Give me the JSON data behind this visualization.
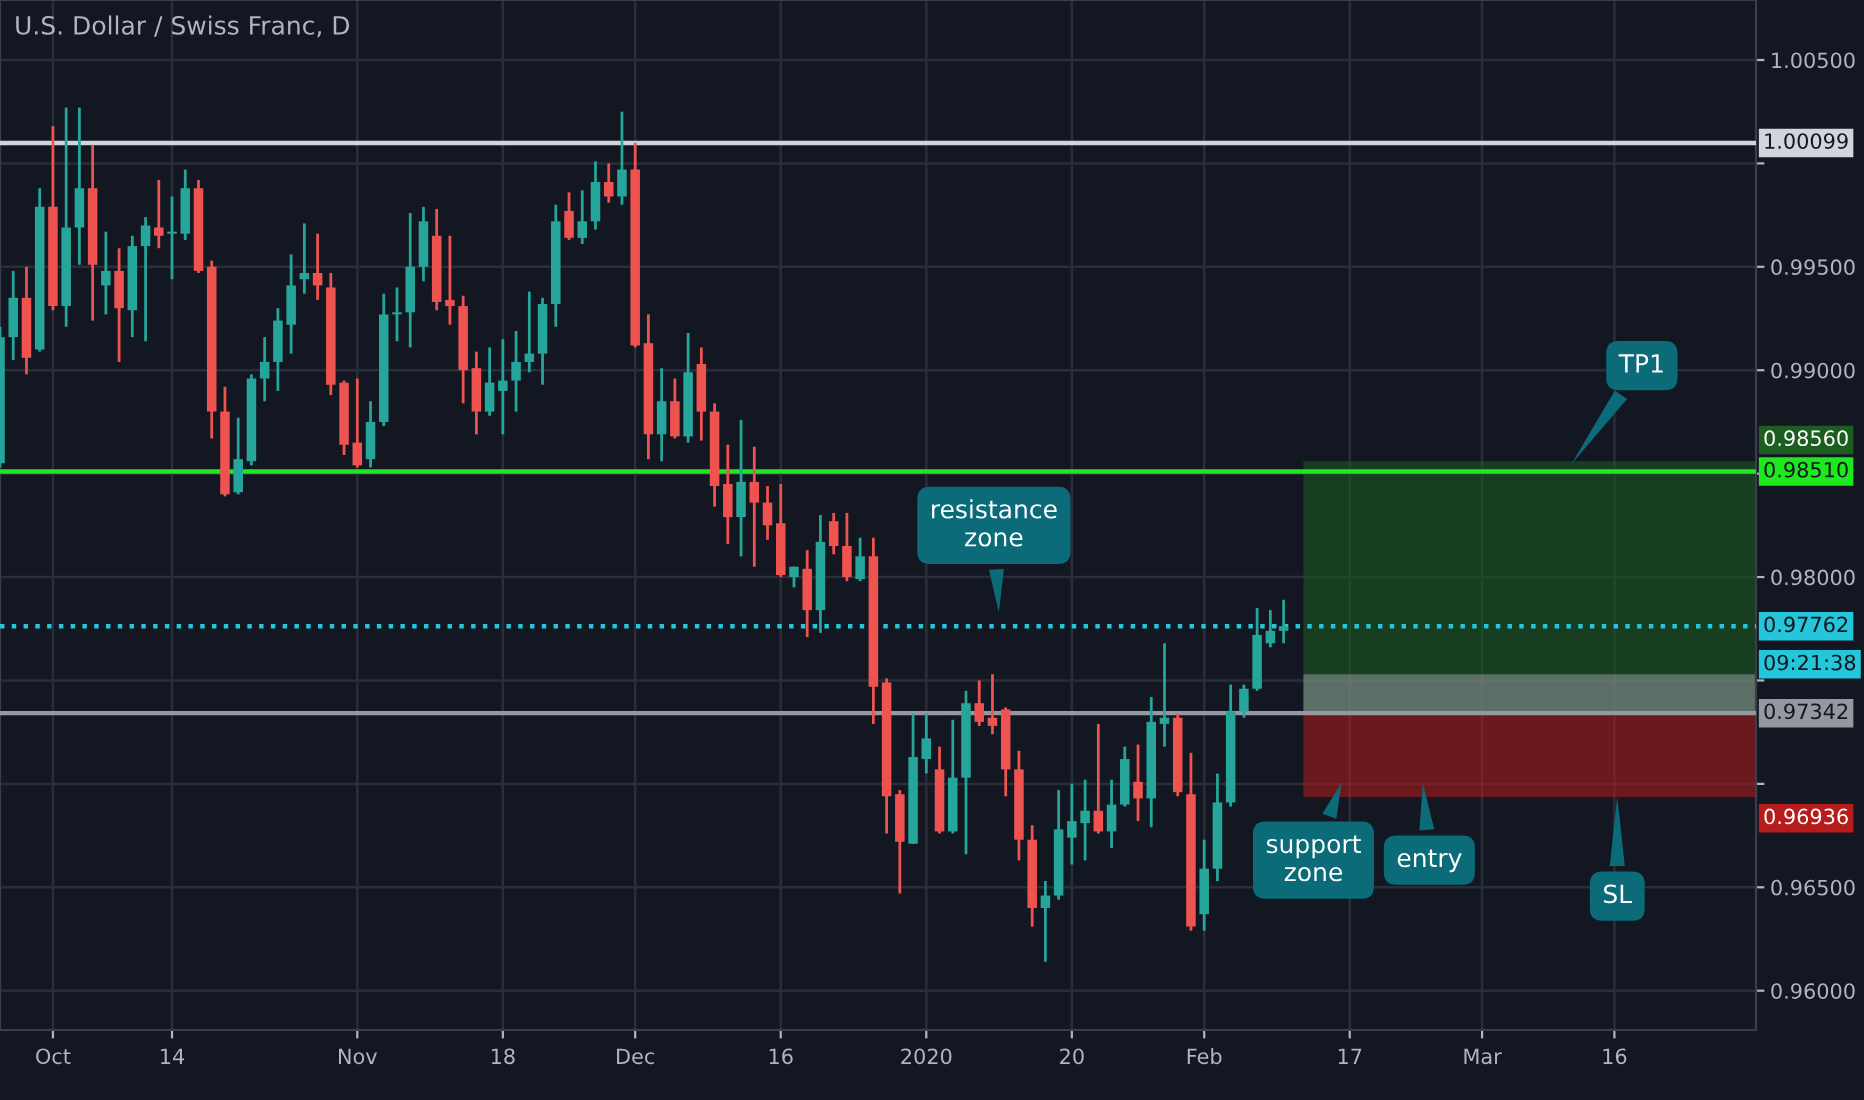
{
  "chart_data": {
    "type": "candlestick",
    "title": "U.S. Dollar / Swiss Franc, D",
    "categories": [
      null,
      null,
      null,
      null,
      "Oct",
      null,
      null,
      null,
      null,
      null,
      null,
      null,
      null,
      "14",
      null,
      null,
      null,
      null,
      null,
      null,
      null,
      null,
      null,
      null,
      null,
      null,
      null,
      "Nov",
      null,
      null,
      null,
      null,
      null,
      null,
      null,
      null,
      null,
      null,
      "18",
      null,
      null,
      null,
      null,
      null,
      null,
      null,
      null,
      null,
      "Dec",
      null,
      null,
      null,
      null,
      null,
      null,
      null,
      null,
      null,
      null,
      "16",
      null,
      null,
      null,
      null,
      null,
      null,
      null,
      null,
      null,
      null,
      "2020",
      null,
      null,
      null,
      null,
      null,
      null,
      null,
      null,
      null,
      null,
      "20",
      null,
      null,
      null,
      null,
      null,
      null,
      null,
      null,
      null,
      "Feb",
      null,
      null,
      null,
      null,
      null,
      null,
      null,
      null,
      null,
      null,
      "17",
      null,
      null,
      null,
      null,
      null,
      null,
      null,
      null,
      null,
      "Mar",
      null,
      null,
      null,
      null,
      null,
      null,
      null,
      null,
      null,
      "16",
      null,
      null,
      null,
      null,
      null,
      null,
      null,
      null,
      null,
      null
    ],
    "ohlc": [
      [
        0.9855,
        0.9921,
        0.9853,
        0.9916
      ],
      [
        0.9916,
        0.9948,
        0.9905,
        0.9935
      ],
      [
        0.9935,
        0.995,
        0.9898,
        0.9906
      ],
      [
        0.991,
        0.9988,
        0.9909,
        0.9979
      ],
      [
        0.9979,
        1.0018,
        0.9929,
        0.9931
      ],
      [
        0.9931,
        1.0027,
        0.9921,
        0.9969
      ],
      [
        0.9969,
        1.0027,
        0.9951,
        0.9988
      ],
      [
        0.9988,
        1.0009,
        0.9924,
        0.9951
      ],
      [
        0.9941,
        0.9967,
        0.9927,
        0.9948
      ],
      [
        0.9948,
        0.9959,
        0.9904,
        0.993
      ],
      [
        0.9929,
        0.9965,
        0.9916,
        0.996
      ],
      [
        0.996,
        0.9974,
        0.9914,
        0.997
      ],
      [
        0.9969,
        0.9992,
        0.9959,
        0.9965
      ],
      [
        0.9966,
        0.9984,
        0.9944,
        0.9967
      ],
      [
        0.9966,
        0.9997,
        0.9963,
        0.9988
      ],
      [
        0.9988,
        0.9992,
        0.9947,
        0.9948
      ],
      [
        0.995,
        0.9953,
        0.9867,
        0.988
      ],
      [
        0.988,
        0.9892,
        0.9839,
        0.984
      ],
      [
        0.9841,
        0.9877,
        0.984,
        0.9857
      ],
      [
        0.9856,
        0.9898,
        0.9854,
        0.9896
      ],
      [
        0.9896,
        0.9916,
        0.9885,
        0.9904
      ],
      [
        0.9904,
        0.993,
        0.989,
        0.9924
      ],
      [
        0.9922,
        0.9956,
        0.9908,
        0.9941
      ],
      [
        0.9944,
        0.9971,
        0.9937,
        0.9947
      ],
      [
        0.9947,
        0.9966,
        0.9934,
        0.9941
      ],
      [
        0.994,
        0.9947,
        0.9888,
        0.9893
      ],
      [
        0.9894,
        0.9895,
        0.9859,
        0.9864
      ],
      [
        0.9865,
        0.9896,
        0.9853,
        0.9854
      ],
      [
        0.9857,
        0.9885,
        0.9853,
        0.9875
      ],
      [
        0.9875,
        0.9937,
        0.9873,
        0.9927
      ],
      [
        0.9927,
        0.994,
        0.9914,
        0.9928
      ],
      [
        0.9928,
        0.9976,
        0.9911,
        0.995
      ],
      [
        0.995,
        0.9979,
        0.9943,
        0.9972
      ],
      [
        0.9965,
        0.9978,
        0.9929,
        0.9933
      ],
      [
        0.9934,
        0.9965,
        0.9922,
        0.9931
      ],
      [
        0.9931,
        0.9936,
        0.9884,
        0.99
      ],
      [
        0.9901,
        0.9909,
        0.9869,
        0.988
      ],
      [
        0.988,
        0.9911,
        0.9878,
        0.9894
      ],
      [
        0.989,
        0.9915,
        0.9869,
        0.9895
      ],
      [
        0.9895,
        0.9919,
        0.988,
        0.9904
      ],
      [
        0.9904,
        0.9938,
        0.9899,
        0.9908
      ],
      [
        0.9908,
        0.9935,
        0.9893,
        0.9932
      ],
      [
        0.9932,
        0.998,
        0.9921,
        0.9972
      ],
      [
        0.9977,
        0.9986,
        0.9963,
        0.9964
      ],
      [
        0.9964,
        0.9987,
        0.9961,
        0.9972
      ],
      [
        0.9972,
        1.0001,
        0.9968,
        0.9991
      ],
      [
        0.9991,
        1.0,
        0.9981,
        0.9984
      ],
      [
        0.9984,
        1.0025,
        0.998,
        0.9997
      ],
      [
        0.9997,
        1.001,
        0.9911,
        0.9912
      ],
      [
        0.9913,
        0.9927,
        0.9857,
        0.9869
      ],
      [
        0.9869,
        0.9901,
        0.9856,
        0.9885
      ],
      [
        0.9885,
        0.9896,
        0.9867,
        0.9868
      ],
      [
        0.9868,
        0.9918,
        0.9865,
        0.9899
      ],
      [
        0.9903,
        0.9911,
        0.9866,
        0.988
      ],
      [
        0.988,
        0.9884,
        0.9834,
        0.9844
      ],
      [
        0.9845,
        0.9864,
        0.9816,
        0.9829
      ],
      [
        0.9829,
        0.9876,
        0.981,
        0.9846
      ],
      [
        0.9846,
        0.9863,
        0.9805,
        0.9836
      ],
      [
        0.9836,
        0.9844,
        0.9818,
        0.9825
      ],
      [
        0.9826,
        0.9845,
        0.98,
        0.9801
      ],
      [
        0.98,
        0.9805,
        0.9795,
        0.9805
      ],
      [
        0.9804,
        0.9813,
        0.9771,
        0.9784
      ],
      [
        0.9784,
        0.983,
        0.9773,
        0.9817
      ],
      [
        0.9827,
        0.9831,
        0.9811,
        0.9815
      ],
      [
        0.9815,
        0.9831,
        0.9798,
        0.98
      ],
      [
        0.9799,
        0.9819,
        0.9798,
        0.981
      ],
      [
        0.981,
        0.9819,
        0.9729,
        0.9747
      ],
      [
        0.9749,
        0.9751,
        0.9676,
        0.9694
      ],
      [
        0.9695,
        0.9697,
        0.9647,
        0.9672
      ],
      [
        0.9671,
        0.9734,
        0.9671,
        0.9713
      ],
      [
        0.9712,
        0.9734,
        0.9705,
        0.9722
      ],
      [
        0.9707,
        0.9718,
        0.9676,
        0.9677
      ],
      [
        0.9677,
        0.9731,
        0.9676,
        0.9703
      ],
      [
        0.9703,
        0.9745,
        0.9666,
        0.9739
      ],
      [
        0.9739,
        0.975,
        0.9728,
        0.973
      ],
      [
        0.9732,
        0.9753,
        0.9724,
        0.9728
      ],
      [
        0.9736,
        0.9737,
        0.9694,
        0.9707
      ],
      [
        0.9707,
        0.9716,
        0.9663,
        0.9673
      ],
      [
        0.9673,
        0.968,
        0.9631,
        0.964
      ],
      [
        0.964,
        0.9653,
        0.9614,
        0.9646
      ],
      [
        0.9646,
        0.9697,
        0.9644,
        0.9678
      ],
      [
        0.9674,
        0.97,
        0.9661,
        0.9682
      ],
      [
        0.9681,
        0.9702,
        0.9663,
        0.9687
      ],
      [
        0.9687,
        0.9729,
        0.9676,
        0.9677
      ],
      [
        0.9677,
        0.9702,
        0.9669,
        0.969
      ],
      [
        0.969,
        0.9718,
        0.9689,
        0.9712
      ],
      [
        0.9701,
        0.9719,
        0.9682,
        0.9693
      ],
      [
        0.9693,
        0.9742,
        0.9679,
        0.973
      ],
      [
        0.9729,
        0.9768,
        0.9718,
        0.9732
      ],
      [
        0.9732,
        0.9734,
        0.9694,
        0.9696
      ],
      [
        0.9695,
        0.9715,
        0.9629,
        0.9631
      ],
      [
        0.9637,
        0.9673,
        0.9629,
        0.9659
      ],
      [
        0.9659,
        0.9705,
        0.9653,
        0.9691
      ],
      [
        0.9691,
        0.9748,
        0.9689,
        0.9735
      ],
      [
        0.9735,
        0.9748,
        0.9732,
        0.9746
      ],
      [
        0.9746,
        0.9785,
        0.9745,
        0.9772
      ],
      [
        0.9768,
        0.9784,
        0.9766,
        0.9774
      ],
      [
        0.9774,
        0.9789,
        0.9768,
        0.97762
      ],
      null,
      null,
      null,
      null,
      null,
      null,
      null,
      null,
      null,
      null,
      null,
      null,
      null,
      null,
      null,
      null,
      null,
      null,
      null,
      null,
      null,
      null,
      null,
      null,
      null,
      null,
      null,
      null,
      null,
      null,
      null,
      null,
      null,
      null,
      null
    ],
    "colors": [
      "#26a69a",
      "#26a69a",
      "#ef5350",
      "#26a69a",
      "#ef5350",
      "#26a69a",
      "#26a69a",
      "#ef5350",
      "#26a69a",
      "#ef5350",
      "#26a69a",
      "#26a69a",
      "#ef5350",
      "#26a69a",
      "#26a69a",
      "#ef5350",
      "#ef5350",
      "#ef5350",
      "#26a69a",
      "#26a69a",
      "#26a69a",
      "#26a69a",
      "#26a69a",
      "#26a69a",
      "#ef5350",
      "#ef5350",
      "#ef5350",
      "#ef5350",
      "#26a69a",
      "#26a69a",
      "#26a69a",
      "#26a69a",
      "#26a69a",
      "#ef5350",
      "#ef5350",
      "#ef5350",
      "#ef5350",
      "#26a69a",
      "#26a69a",
      "#26a69a",
      "#26a69a",
      "#26a69a",
      "#26a69a",
      "#ef5350",
      "#26a69a",
      "#26a69a",
      "#ef5350",
      "#26a69a",
      "#ef5350",
      "#ef5350",
      "#26a69a",
      "#ef5350",
      "#26a69a",
      "#ef5350",
      "#ef5350",
      "#ef5350",
      "#26a69a",
      "#ef5350",
      "#ef5350",
      "#ef5350",
      "#26a69a",
      "#ef5350",
      "#26a69a",
      "#ef5350",
      "#ef5350",
      "#26a69a",
      "#ef5350",
      "#ef5350",
      "#ef5350",
      "#26a69a",
      "#26a69a",
      "#ef5350",
      "#26a69a",
      "#26a69a",
      "#ef5350",
      "#ef5350",
      "#ef5350",
      "#ef5350",
      "#ef5350",
      "#26a69a",
      "#26a69a",
      "#26a69a",
      "#26a69a",
      "#ef5350",
      "#26a69a",
      "#26a69a",
      "#ef5350",
      "#26a69a",
      "#26a69a",
      "#ef5350",
      "#ef5350",
      "#26a69a",
      "#26a69a",
      "#26a69a",
      "#26a69a",
      "#26a69a",
      "#26a69a",
      "#26a69a",
      null,
      null,
      null,
      null,
      null,
      null,
      null,
      null,
      null,
      null,
      null,
      null,
      null,
      null,
      null,
      null,
      null,
      null,
      null,
      null,
      null,
      null,
      null,
      null,
      null,
      null,
      null,
      null,
      null,
      null,
      null,
      null,
      null,
      null,
      null
    ],
    "ylim": [
      0.9581,
      1.0079
    ],
    "yticks": [
      {
        "value": 0.96,
        "label": "0.96000"
      },
      {
        "value": 0.965,
        "label": "0.96500"
      },
      {
        "value": 0.97,
        "label": null
      },
      {
        "value": 0.975,
        "label": null
      },
      {
        "value": 0.98,
        "label": "0.98000"
      },
      {
        "value": 0.985,
        "label": null
      },
      {
        "value": 0.99,
        "label": "0.99000"
      },
      {
        "value": 0.995,
        "label": "0.99500"
      },
      {
        "value": 1.0,
        "label": null
      },
      {
        "value": 1.005,
        "label": "1.00500"
      }
    ],
    "grid": true,
    "ref_lines": [
      {
        "axis": "y",
        "value": 1.00099,
        "label": "1.00099",
        "color": "#d1d4dc",
        "line_style": "solid"
      },
      {
        "axis": "y",
        "value": 0.9851,
        "label": "0.98510",
        "color": "#1ee81e",
        "line_style": "solid"
      },
      {
        "axis": "y",
        "value": 0.97762,
        "label": "0.97762",
        "color": "#26c6da",
        "line_style": "dotted"
      },
      {
        "axis": "y",
        "value": 0.97342,
        "label": "0.97342",
        "color": "#9598a1",
        "line_style": "solid"
      }
    ],
    "bands": [
      {
        "axis": "y",
        "from": 0.97342,
        "to": 0.9856,
        "label": "0.98560",
        "color": "#1b5e20"
      },
      {
        "axis": "y",
        "from": 0.97342,
        "to": 0.96936,
        "label": "0.96936",
        "color": "#b71c1c"
      },
      {
        "axis": "y",
        "from": 0.97342,
        "to": 0.9753,
        "label": null,
        "color": "#9598a1"
      }
    ],
    "annotations": [
      "resistance zone",
      "support zone",
      "entry",
      "TP1",
      "SL",
      "09:21:38"
    ]
  }
}
